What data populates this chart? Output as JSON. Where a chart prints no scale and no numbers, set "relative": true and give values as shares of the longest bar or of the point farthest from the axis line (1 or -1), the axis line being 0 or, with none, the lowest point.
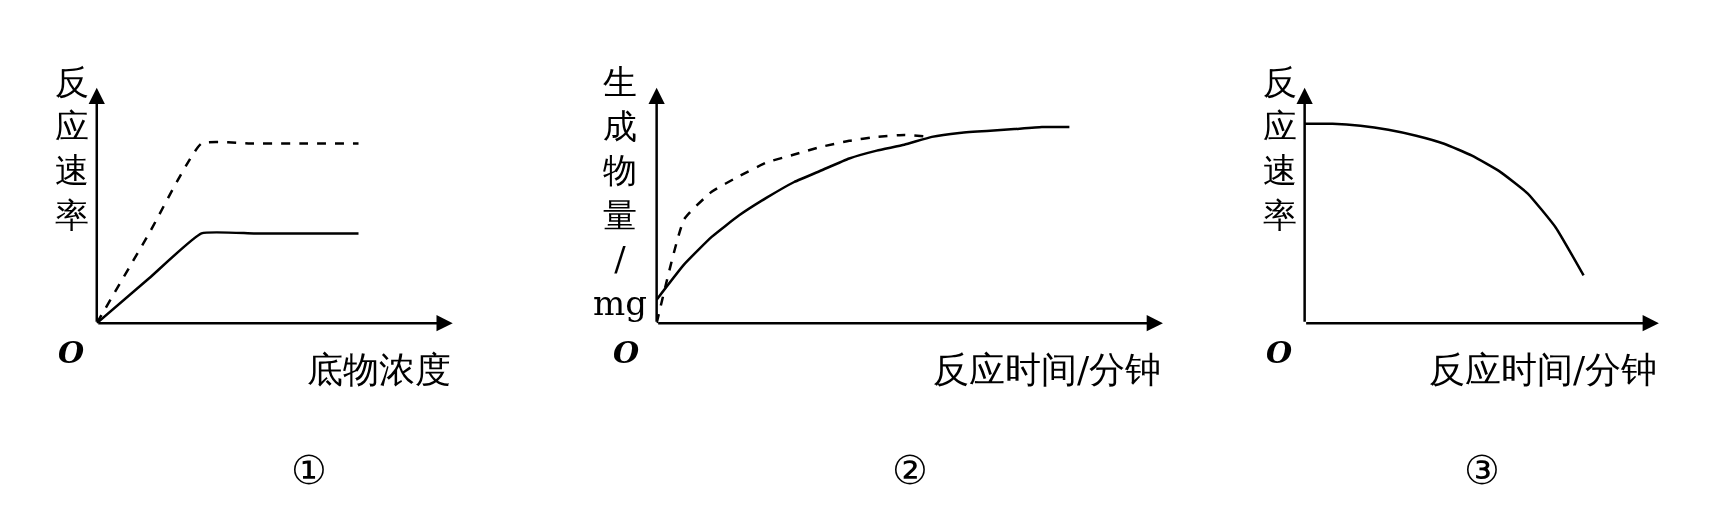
{
  "chart_data": [
    {
      "type": "line",
      "relative": true,
      "xlabel": "底物浓度",
      "ylabel": "反应速率",
      "annotations": [
        "O",
        "①"
      ],
      "categories": [
        null,
        null,
        null,
        null,
        null,
        null
      ],
      "marker": "none",
      "series": [
        {
          "color": "#000000",
          "line_style": "dashed",
          "values": [
            0,
            0.5,
            1,
            1,
            1,
            1
          ]
        },
        {
          "color": "#000000",
          "line_style": "solid",
          "values": [
            0,
            0.25,
            0.5,
            0.5,
            0.5,
            0.5
          ]
        }
      ]
    },
    {
      "type": "line",
      "relative": true,
      "xlabel": "反应时间/分钟",
      "ylabel": "生成物量/mg",
      "annotations": [
        "O",
        "②"
      ],
      "categories": [
        null,
        null,
        null,
        null,
        null,
        null,
        null,
        null,
        null,
        null,
        null,
        null,
        null,
        null,
        null,
        null
      ],
      "marker": "none",
      "series": [
        {
          "color": "#000000",
          "line_style": "dashed",
          "values": [
            0,
            0.53,
            0.67,
            0.75,
            0.82,
            0.86,
            0.9,
            0.93,
            0.95,
            0.96,
            0.95,
            null,
            null,
            null,
            null,
            null
          ]
        },
        {
          "color": "#000000",
          "line_style": "solid",
          "values": [
            0.12,
            0.3,
            0.44,
            0.55,
            0.64,
            0.72,
            0.78,
            0.84,
            0.88,
            0.91,
            0.95,
            0.97,
            0.98,
            0.99,
            1,
            1
          ]
        }
      ]
    },
    {
      "type": "line",
      "relative": true,
      "xlabel": "反应时间/分钟",
      "ylabel": "反应速率",
      "annotations": [
        "O",
        "③"
      ],
      "categories": [
        null,
        null,
        null,
        null,
        null,
        null,
        null,
        null,
        null,
        null,
        null
      ],
      "marker": "none",
      "series": [
        {
          "color": "#000000",
          "line_style": "solid",
          "values": [
            1,
            1,
            0.99,
            0.97,
            0.94,
            0.9,
            0.84,
            0.76,
            0.65,
            0.48,
            0.24
          ]
        }
      ]
    }
  ]
}
